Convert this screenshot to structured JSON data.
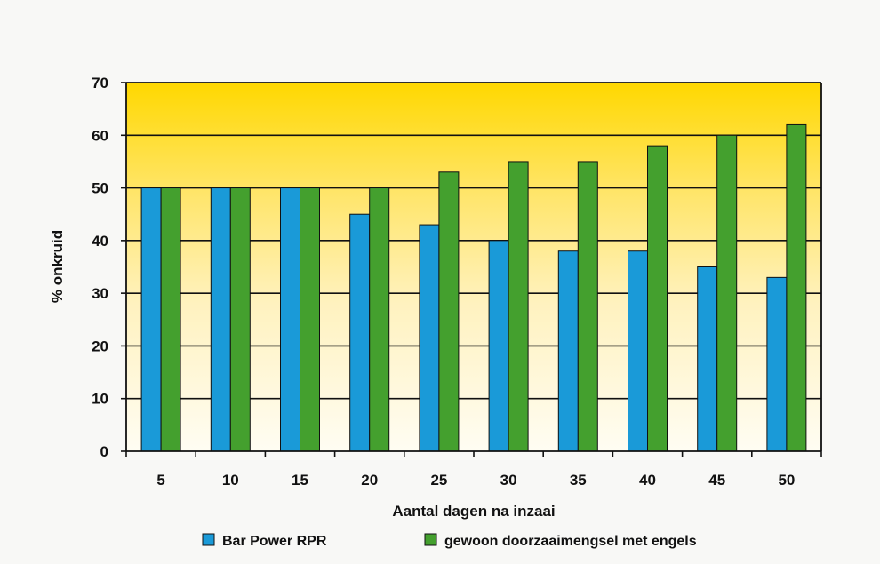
{
  "colors": {
    "series_blue": "#1a9ad8",
    "series_green": "#44a02e",
    "plot_top": "#ffd800",
    "plot_bottom": "#fffdf3",
    "page_background": "#f8f8f6"
  },
  "chart_data": {
    "type": "bar",
    "title": "",
    "xlabel": "Aantal dagen na inzaai",
    "ylabel": "% onkruid",
    "categories": [
      "5",
      "10",
      "15",
      "20",
      "25",
      "30",
      "35",
      "40",
      "45",
      "50"
    ],
    "ylim": [
      0,
      70
    ],
    "yticks": [
      0,
      10,
      20,
      30,
      40,
      50,
      60,
      70
    ],
    "grid": "horizontal",
    "legend_position": "bottom",
    "series": [
      {
        "name": "Bar Power RPR",
        "color": "#1a9ad8",
        "values": [
          50,
          50,
          50,
          45,
          43,
          40,
          38,
          38,
          35,
          33
        ]
      },
      {
        "name": "gewoon doorzaaimengsel met engels",
        "color": "#44a02e",
        "values": [
          50,
          50,
          50,
          50,
          53,
          55,
          55,
          58,
          60,
          62
        ]
      }
    ]
  }
}
